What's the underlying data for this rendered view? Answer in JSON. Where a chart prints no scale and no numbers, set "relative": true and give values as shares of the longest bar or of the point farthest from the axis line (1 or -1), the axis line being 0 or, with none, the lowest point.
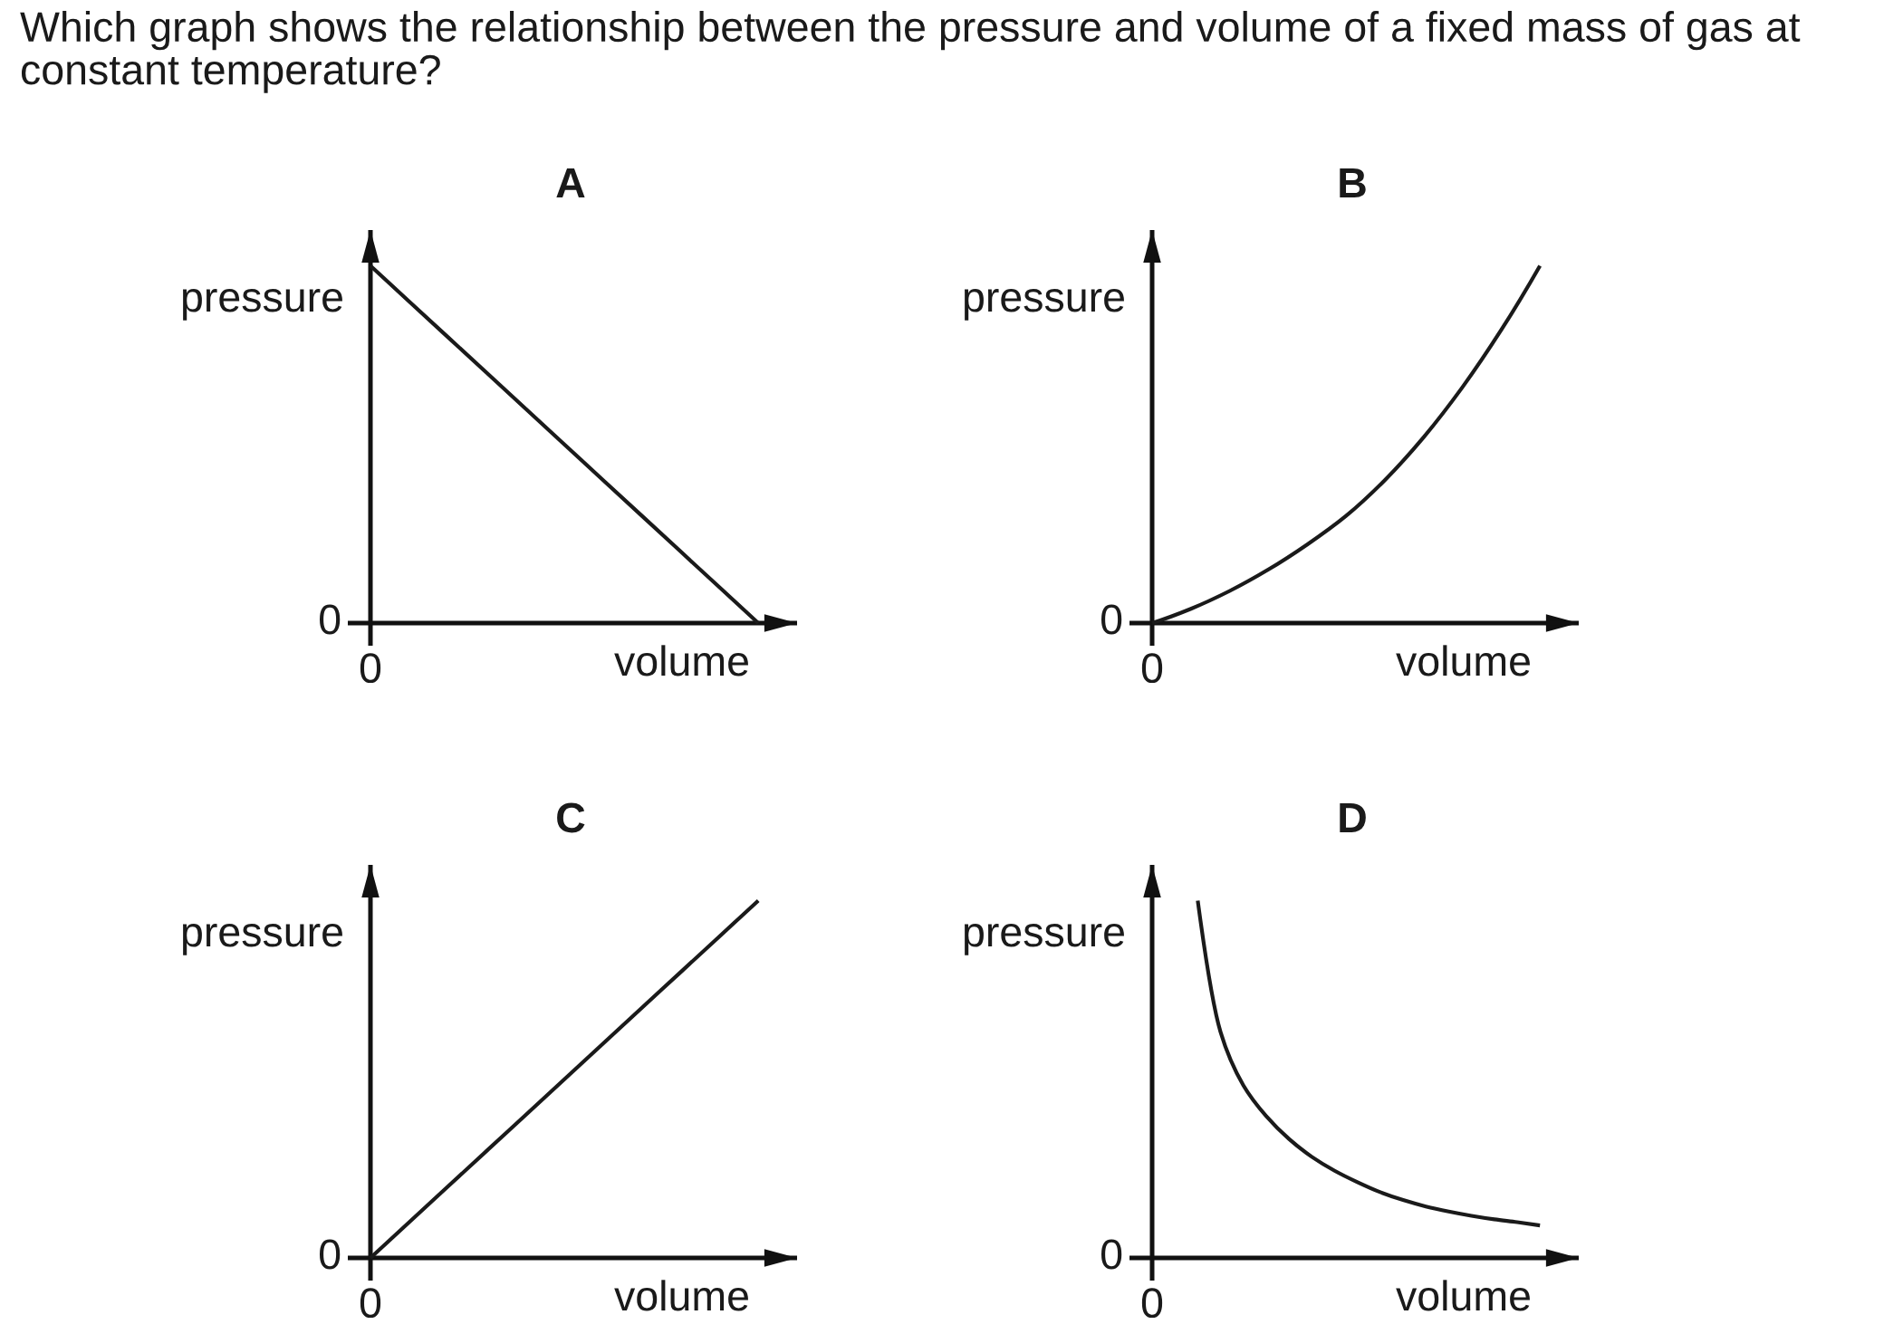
{
  "chart_data": [
    {
      "type": "other",
      "title": "Which graph shows the relationship between the pressure and volume of a fixed mass of gas at constant temperature?"
    },
    {
      "type": "line",
      "title": "A",
      "xlabel": "volume",
      "ylabel": "pressure",
      "relative": true,
      "categories": [
        null,
        null,
        null,
        null,
        null,
        null,
        null,
        null,
        null,
        null,
        null
      ],
      "values": [
        1,
        0.9,
        0.8,
        0.7,
        0.6,
        0.5,
        0.4,
        0.3,
        0.2,
        0.1,
        0
      ],
      "color": "#1a1a1a",
      "annotations": [
        "0",
        "0"
      ]
    },
    {
      "type": "line",
      "title": "B",
      "xlabel": "volume",
      "ylabel": "pressure",
      "relative": true,
      "categories": [
        null,
        null,
        null,
        null,
        null,
        null,
        null,
        null,
        null,
        null,
        null
      ],
      "values": [
        0,
        0.04,
        0.09,
        0.15,
        0.22,
        0.3,
        0.4,
        0.52,
        0.66,
        0.82,
        1
      ],
      "color": "#1a1a1a",
      "annotations": [
        "0",
        "0"
      ]
    },
    {
      "type": "line",
      "title": "C",
      "xlabel": "volume",
      "ylabel": "pressure",
      "relative": true,
      "categories": [
        null,
        null,
        null,
        null,
        null,
        null,
        null,
        null,
        null,
        null,
        null
      ],
      "values": [
        0,
        0.1,
        0.2,
        0.3,
        0.4,
        0.5,
        0.6,
        0.7,
        0.8,
        0.9,
        1
      ],
      "color": "#1a1a1a",
      "annotations": [
        "0",
        "0"
      ]
    },
    {
      "type": "line",
      "title": "D",
      "xlabel": "volume",
      "ylabel": "pressure",
      "relative": true,
      "categories": [
        null,
        null,
        null,
        null,
        null,
        null,
        null,
        null,
        null,
        null,
        null,
        null,
        null,
        null,
        null,
        null,
        null,
        null
      ],
      "values": [
        null,
        null,
        1,
        0.632,
        0.483,
        0.397,
        0.333,
        0.283,
        0.244,
        0.212,
        0.184,
        0.162,
        0.144,
        0.13,
        0.118,
        0.108,
        0.1,
        0.091
      ],
      "color": "#1a1a1a",
      "annotations": [
        "0",
        "0"
      ]
    }
  ]
}
